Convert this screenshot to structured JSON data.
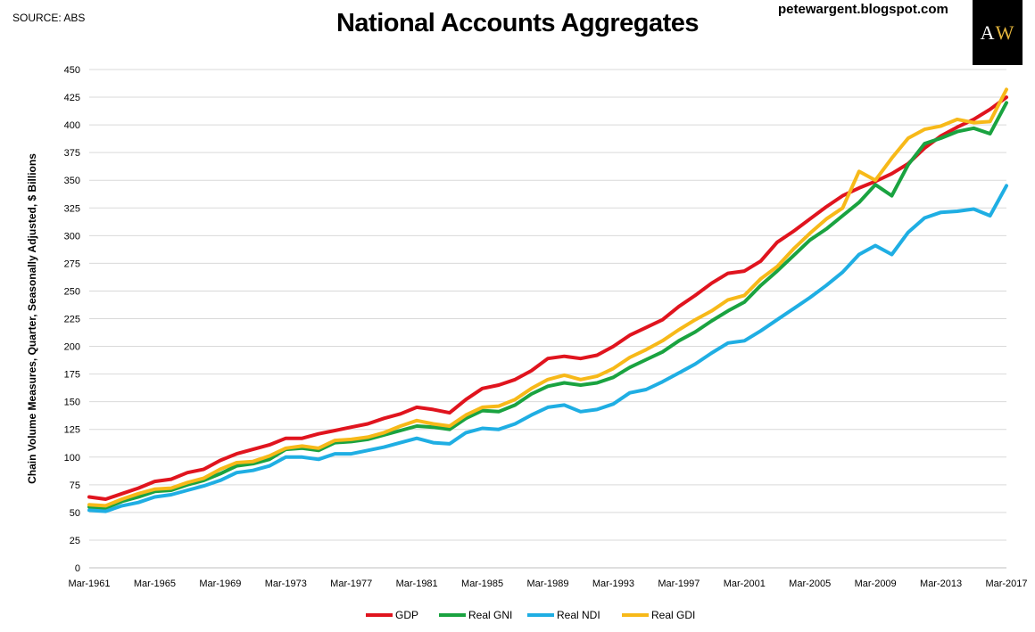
{
  "header": {
    "source": "SOURCE: ABS",
    "title": "National Accounts Aggregates",
    "site": "petewargent.blogspot.com",
    "logo": {
      "a": "A",
      "w": "W",
      "a_color": "#ffffff",
      "w_color": "#e2b33c"
    }
  },
  "chart_data": {
    "type": "line",
    "title": "National Accounts Aggregates",
    "xlabel": "",
    "ylabel": "Chain Volume Measures, Quarter, Seasonally Adjusted, $ Billions",
    "xlim": [
      1961.0,
      2017.0
    ],
    "ylim": [
      0,
      450
    ],
    "yticks": [
      0,
      25,
      50,
      75,
      100,
      125,
      150,
      175,
      200,
      225,
      250,
      275,
      300,
      325,
      350,
      375,
      400,
      425,
      450
    ],
    "xticks": [
      {
        "x": 1961,
        "label": "Mar-1961"
      },
      {
        "x": 1965,
        "label": "Mar-1965"
      },
      {
        "x": 1969,
        "label": "Mar-1969"
      },
      {
        "x": 1973,
        "label": "Mar-1973"
      },
      {
        "x": 1977,
        "label": "Mar-1977"
      },
      {
        "x": 1981,
        "label": "Mar-1981"
      },
      {
        "x": 1985,
        "label": "Mar-1985"
      },
      {
        "x": 1989,
        "label": "Mar-1989"
      },
      {
        "x": 1993,
        "label": "Mar-1993"
      },
      {
        "x": 1997,
        "label": "Mar-1997"
      },
      {
        "x": 2001,
        "label": "Mar-2001"
      },
      {
        "x": 2005,
        "label": "Mar-2005"
      },
      {
        "x": 2009,
        "label": "Mar-2009"
      },
      {
        "x": 2013,
        "label": "Mar-2013"
      },
      {
        "x": 2017,
        "label": "Mar-2017"
      }
    ],
    "grid": "horizontal",
    "legend_position": "bottom",
    "series": [
      {
        "name": "GDP",
        "color": "#e0141e",
        "x": [
          1961,
          1962,
          1963,
          1964,
          1965,
          1966,
          1967,
          1968,
          1969,
          1970,
          1971,
          1972,
          1973,
          1974,
          1975,
          1976,
          1977,
          1978,
          1979,
          1980,
          1981,
          1982,
          1983,
          1984,
          1985,
          1986,
          1987,
          1988,
          1989,
          1990,
          1991,
          1992,
          1993,
          1994,
          1995,
          1996,
          1997,
          1998,
          1999,
          2000,
          2001,
          2002,
          2003,
          2004,
          2005,
          2006,
          2007,
          2008,
          2009,
          2010,
          2011,
          2012,
          2013,
          2014,
          2015,
          2016,
          2017
        ],
        "y": [
          64,
          62,
          67,
          72,
          78,
          80,
          86,
          89,
          97,
          103,
          107,
          111,
          117,
          117,
          121,
          124,
          127,
          130,
          135,
          139,
          145,
          143,
          140,
          152,
          162,
          165,
          170,
          178,
          189,
          191,
          189,
          192,
          200,
          210,
          217,
          224,
          236,
          246,
          257,
          266,
          268,
          277,
          294,
          304,
          315,
          326,
          336,
          343,
          349,
          356,
          365,
          379,
          390,
          398,
          405,
          414,
          425
        ]
      },
      {
        "name": "Real GNI",
        "color": "#1aa340",
        "x": [
          1961,
          1962,
          1963,
          1964,
          1965,
          1966,
          1967,
          1968,
          1969,
          1970,
          1971,
          1972,
          1973,
          1974,
          1975,
          1976,
          1977,
          1978,
          1979,
          1980,
          1981,
          1982,
          1983,
          1984,
          1985,
          1986,
          1987,
          1988,
          1989,
          1990,
          1991,
          1992,
          1993,
          1994,
          1995,
          1996,
          1997,
          1998,
          1999,
          2000,
          2001,
          2002,
          2003,
          2004,
          2005,
          2006,
          2007,
          2008,
          2009,
          2010,
          2011,
          2012,
          2013,
          2014,
          2015,
          2016,
          2017
        ],
        "y": [
          55,
          54,
          60,
          64,
          69,
          70,
          75,
          79,
          85,
          92,
          94,
          98,
          107,
          108,
          106,
          113,
          114,
          116,
          120,
          124,
          128,
          127,
          125,
          135,
          142,
          141,
          147,
          157,
          164,
          167,
          165,
          167,
          172,
          181,
          188,
          195,
          205,
          213,
          223,
          232,
          240,
          255,
          268,
          282,
          296,
          306,
          318,
          330,
          346,
          336,
          364,
          383,
          388,
          394,
          397,
          392,
          420
        ]
      },
      {
        "name": "Real NDI",
        "color": "#1faee3",
        "x": [
          1961,
          1962,
          1963,
          1964,
          1965,
          1966,
          1967,
          1968,
          1969,
          1970,
          1971,
          1972,
          1973,
          1974,
          1975,
          1976,
          1977,
          1978,
          1979,
          1980,
          1981,
          1982,
          1983,
          1984,
          1985,
          1986,
          1987,
          1988,
          1989,
          1990,
          1991,
          1992,
          1993,
          1994,
          1995,
          1996,
          1997,
          1998,
          1999,
          2000,
          2001,
          2002,
          2003,
          2004,
          2005,
          2006,
          2007,
          2008,
          2009,
          2010,
          2011,
          2012,
          2013,
          2014,
          2015,
          2016,
          2017
        ],
        "y": [
          52,
          51,
          56,
          59,
          64,
          66,
          70,
          74,
          79,
          86,
          88,
          92,
          100,
          100,
          98,
          103,
          103,
          106,
          109,
          113,
          117,
          113,
          112,
          122,
          126,
          125,
          130,
          138,
          145,
          147,
          141,
          143,
          148,
          158,
          161,
          168,
          176,
          184,
          194,
          203,
          205,
          214,
          224,
          234,
          244,
          255,
          267,
          283,
          291,
          283,
          303,
          316,
          321,
          322,
          324,
          318,
          345
        ]
      },
      {
        "name": "Real GDI",
        "color": "#f7b919",
        "x": [
          1961,
          1962,
          1963,
          1964,
          1965,
          1966,
          1967,
          1968,
          1969,
          1970,
          1971,
          1972,
          1973,
          1974,
          1975,
          1976,
          1977,
          1978,
          1979,
          1980,
          1981,
          1982,
          1983,
          1984,
          1985,
          1986,
          1987,
          1988,
          1989,
          1990,
          1991,
          1992,
          1993,
          1994,
          1995,
          1996,
          1997,
          1998,
          1999,
          2000,
          2001,
          2002,
          2003,
          2004,
          2005,
          2006,
          2007,
          2008,
          2009,
          2010,
          2011,
          2012,
          2013,
          2014,
          2015,
          2016,
          2017
        ],
        "y": [
          57,
          56,
          62,
          67,
          71,
          72,
          77,
          81,
          89,
          95,
          96,
          101,
          108,
          110,
          108,
          115,
          116,
          118,
          122,
          128,
          133,
          130,
          128,
          138,
          145,
          146,
          152,
          162,
          170,
          174,
          170,
          173,
          180,
          190,
          197,
          205,
          215,
          224,
          232,
          242,
          246,
          261,
          272,
          288,
          302,
          315,
          325,
          358,
          350,
          370,
          388,
          396,
          399,
          405,
          402,
          403,
          432
        ]
      }
    ]
  }
}
